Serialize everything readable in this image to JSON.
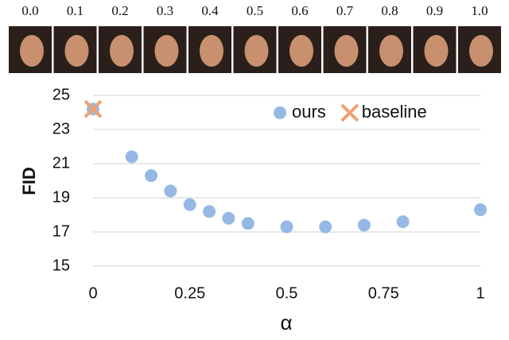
{
  "image_strip": {
    "labels": [
      "0.0",
      "0.1",
      "0.2",
      "0.3",
      "0.4",
      "0.5",
      "0.6",
      "0.7",
      "0.8",
      "0.9",
      "1.0"
    ]
  },
  "chart_data": {
    "type": "scatter",
    "x_label": "α",
    "y_label": "FID",
    "xlim": [
      0,
      1
    ],
    "xticks": [
      0,
      0.25,
      0.5,
      0.75,
      1
    ],
    "ylim": [
      15,
      25
    ],
    "yticks": [
      15,
      17,
      19,
      21,
      23,
      25
    ],
    "grid": true,
    "legend": "top-right",
    "series": [
      {
        "name": "ours",
        "color": "#95b9e4",
        "marker": "circle",
        "x": [
          0,
          0.1,
          0.15,
          0.2,
          0.25,
          0.3,
          0.35,
          0.4,
          0.5,
          0.6,
          0.7,
          0.8,
          1
        ],
        "values": [
          24.2,
          21.4,
          20.3,
          19.4,
          18.6,
          18.2,
          17.8,
          17.5,
          17.3,
          17.3,
          17.4,
          17.6,
          18.3
        ]
      },
      {
        "name": "baseline",
        "color": "#f0a070",
        "marker": "x",
        "x": [
          0
        ],
        "values": [
          24.2
        ]
      }
    ]
  }
}
